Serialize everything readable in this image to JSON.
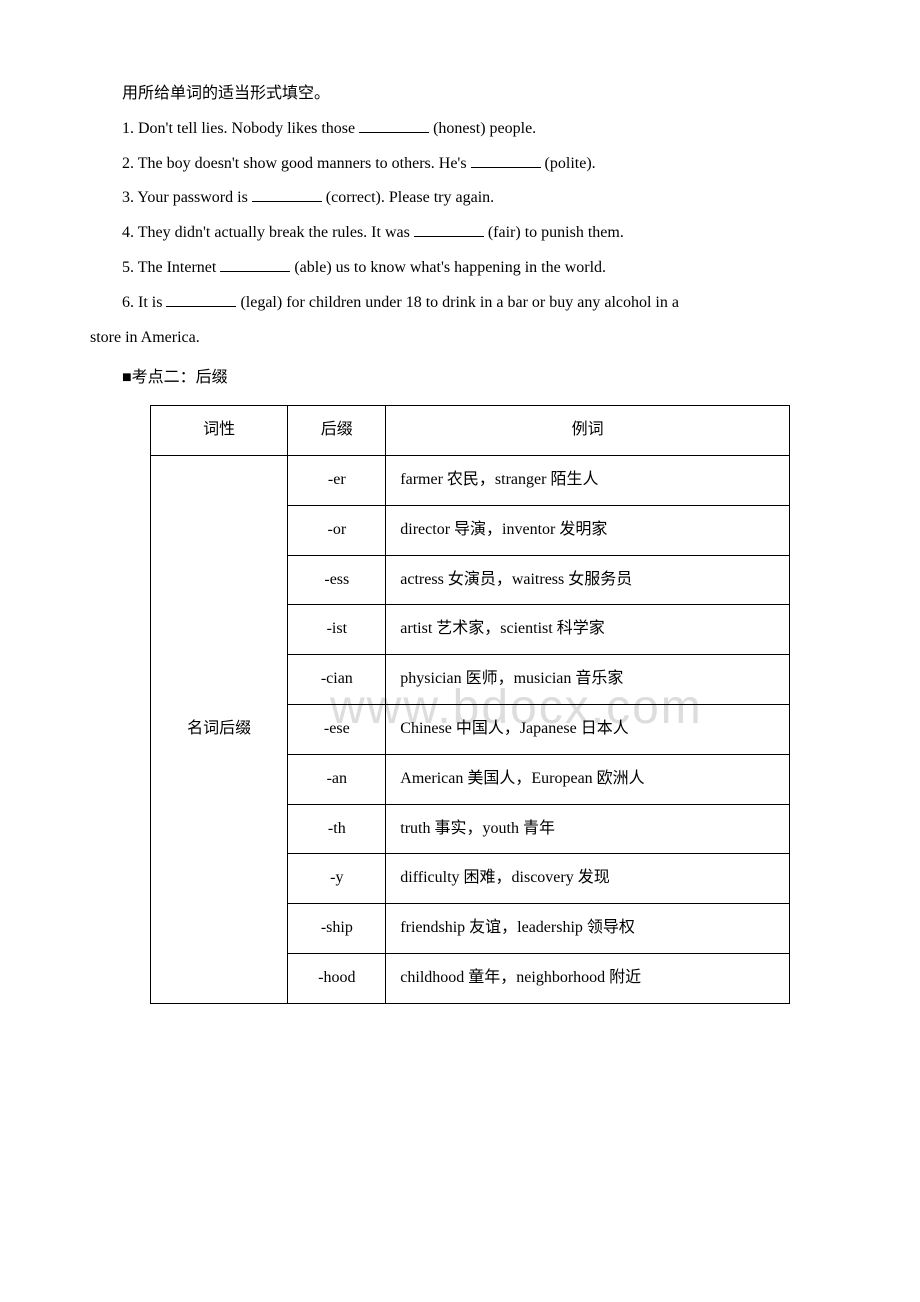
{
  "instruction": "用所给单词的适当形式填空。",
  "questions": [
    {
      "pre": "1. Don't tell lies. Nobody likes those ",
      "post": " (honest) people."
    },
    {
      "pre": "2. The boy doesn't show good manners to others. He's ",
      "post": " (polite)."
    },
    {
      "pre": "3. Your password is ",
      "post": " (correct). Please try again."
    },
    {
      "pre": "4. They didn't actually break the rules. It was ",
      "post": " (fair) to punish them."
    },
    {
      "pre": "5. The Internet ",
      "post": " (able) us to know what's happening in the world."
    },
    {
      "pre": "6. It is ",
      "post": " (legal) for children under 18 to drink in a bar or buy any alcohol in a",
      "line2": "store in America."
    }
  ],
  "section_title": "■考点二：后缀",
  "table_headers": {
    "col1": "词性",
    "col2": "后缀",
    "col3": "例词"
  },
  "row_label": "名词后缀",
  "rows": [
    {
      "suffix": "-er",
      "example": "farmer 农民，stranger 陌生人"
    },
    {
      "suffix": "-or",
      "example": "director 导演，inventor 发明家"
    },
    {
      "suffix": "-ess",
      "example": "actress 女演员，waitress 女服务员"
    },
    {
      "suffix": "-ist",
      "example": "artist 艺术家，scientist 科学家"
    },
    {
      "suffix": "-cian",
      "example": "physician 医师，musician 音乐家"
    },
    {
      "suffix": "-ese",
      "example": "Chinese 中国人，Japanese 日本人"
    },
    {
      "suffix": "-an",
      "example": "American 美国人，European 欧洲人"
    },
    {
      "suffix": "-th",
      "example": "truth 事实，youth 青年"
    },
    {
      "suffix": "-y",
      "example": "difficulty 困难，discovery 发现"
    },
    {
      "suffix": "-ship",
      "example": "friendship 友谊，leadership 领导权"
    },
    {
      "suffix": "-hood",
      "example": "childhood 童年，neighborhood 附近"
    }
  ],
  "watermark": "www.bdocx.com"
}
